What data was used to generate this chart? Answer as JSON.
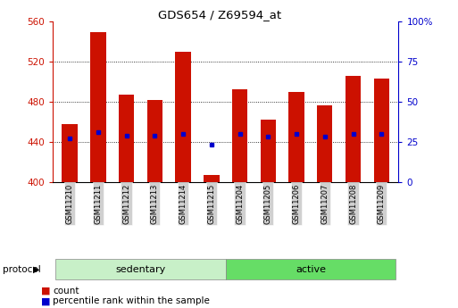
{
  "title": "GDS654 / Z69594_at",
  "samples": [
    "GSM11210",
    "GSM11211",
    "GSM11212",
    "GSM11213",
    "GSM11214",
    "GSM11215",
    "GSM11204",
    "GSM11205",
    "GSM11206",
    "GSM11207",
    "GSM11208",
    "GSM11209"
  ],
  "counts": [
    458,
    549,
    487,
    482,
    530,
    407,
    492,
    462,
    490,
    476,
    506,
    503
  ],
  "percentiles": [
    27,
    31,
    29,
    29,
    30,
    23,
    30,
    28,
    30,
    28,
    30,
    30
  ],
  "base": 400,
  "ylim_left": [
    400,
    560
  ],
  "ylim_right": [
    0,
    100
  ],
  "yticks_left": [
    400,
    440,
    480,
    520,
    560
  ],
  "yticks_right": [
    0,
    25,
    50,
    75,
    100
  ],
  "groups": [
    {
      "label": "sedentary",
      "start": 0,
      "end": 6,
      "color": "#c8f0c8"
    },
    {
      "label": "active",
      "start": 6,
      "end": 12,
      "color": "#66dd66"
    }
  ],
  "bar_color": "#cc1100",
  "dot_color": "#0000cc",
  "bar_width": 0.55,
  "left_axis_color": "#cc1100",
  "right_axis_color": "#0000cc",
  "background_color": "#ffffff",
  "protocol_label": "protocol",
  "legend_count_label": "count",
  "legend_pct_label": "percentile rank within the sample",
  "tick_bg_color": "#d0d0d0",
  "grid_yticks": [
    440,
    480,
    520
  ]
}
